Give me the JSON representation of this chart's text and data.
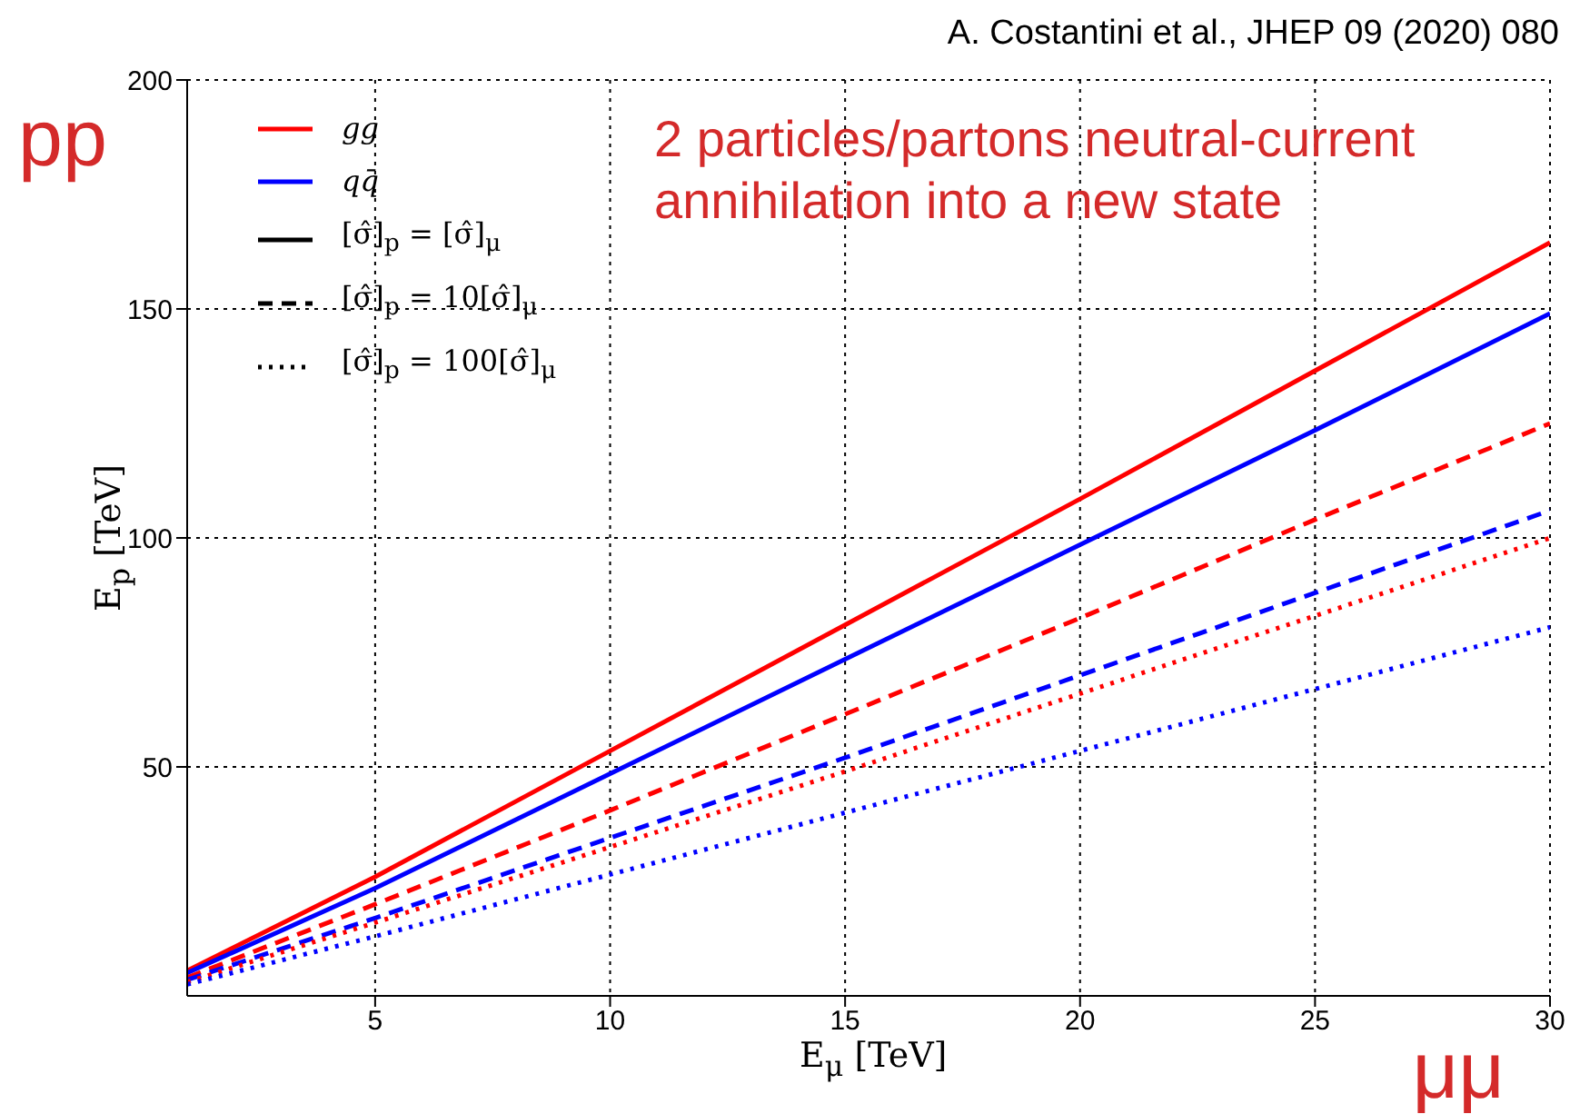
{
  "chart_data": {
    "type": "line",
    "annotations": [
      "A. Costantini et al., JHEP 09 (2020) 080",
      "pp",
      "μμ",
      "2 particles/partons neutral-current annihilation into a new state",
      "[σ̂]$_{p}$ = [σ̂]$_{μ}$",
      "[σ̂]$_{p}$ = 10[σ̂]$_{μ}$",
      "[σ̂]$_{p}$ = 100[σ̂]$_{μ}$"
    ],
    "xlabel": "E$_{μ}$ [TeV]",
    "ylabel": "E$_{p}$ [TeV]",
    "x": [
      1,
      5,
      10,
      15,
      20,
      25,
      30
    ],
    "series": [
      {
        "name": "gg",
        "color": "#ff0000",
        "line_style": "solid",
        "values": [
          5.5,
          26,
          53.5,
          81,
          108.5,
          136.5,
          164.5
        ]
      },
      {
        "name": "qq̄",
        "color": "#0000ff",
        "line_style": "solid",
        "values": [
          5,
          23.5,
          48.5,
          73.5,
          98.5,
          123.5,
          149
        ]
      },
      {
        "color": "#ff0000",
        "line_style": "dashed",
        "values": [
          4,
          20,
          40.5,
          61.5,
          82.5,
          104,
          125
        ]
      },
      {
        "color": "#0000ff",
        "line_style": "dashed",
        "values": [
          3.5,
          17,
          34.5,
          52,
          70,
          88,
          106
        ]
      },
      {
        "color": "#ff0000",
        "line_style": "dotted",
        "values": [
          3,
          16,
          32.5,
          49,
          66,
          83,
          100
        ]
      },
      {
        "color": "#0000ff",
        "line_style": "dotted",
        "values": [
          2.5,
          13,
          26.5,
          40,
          53.5,
          67,
          80.5
        ]
      }
    ],
    "xlim": [
      1,
      30
    ],
    "xticks": [
      5,
      10,
      15,
      20,
      25,
      30
    ],
    "ylim": [
      0,
      200
    ],
    "yticks": [
      50,
      100,
      150,
      200
    ],
    "grid": true,
    "legend": "top left"
  }
}
